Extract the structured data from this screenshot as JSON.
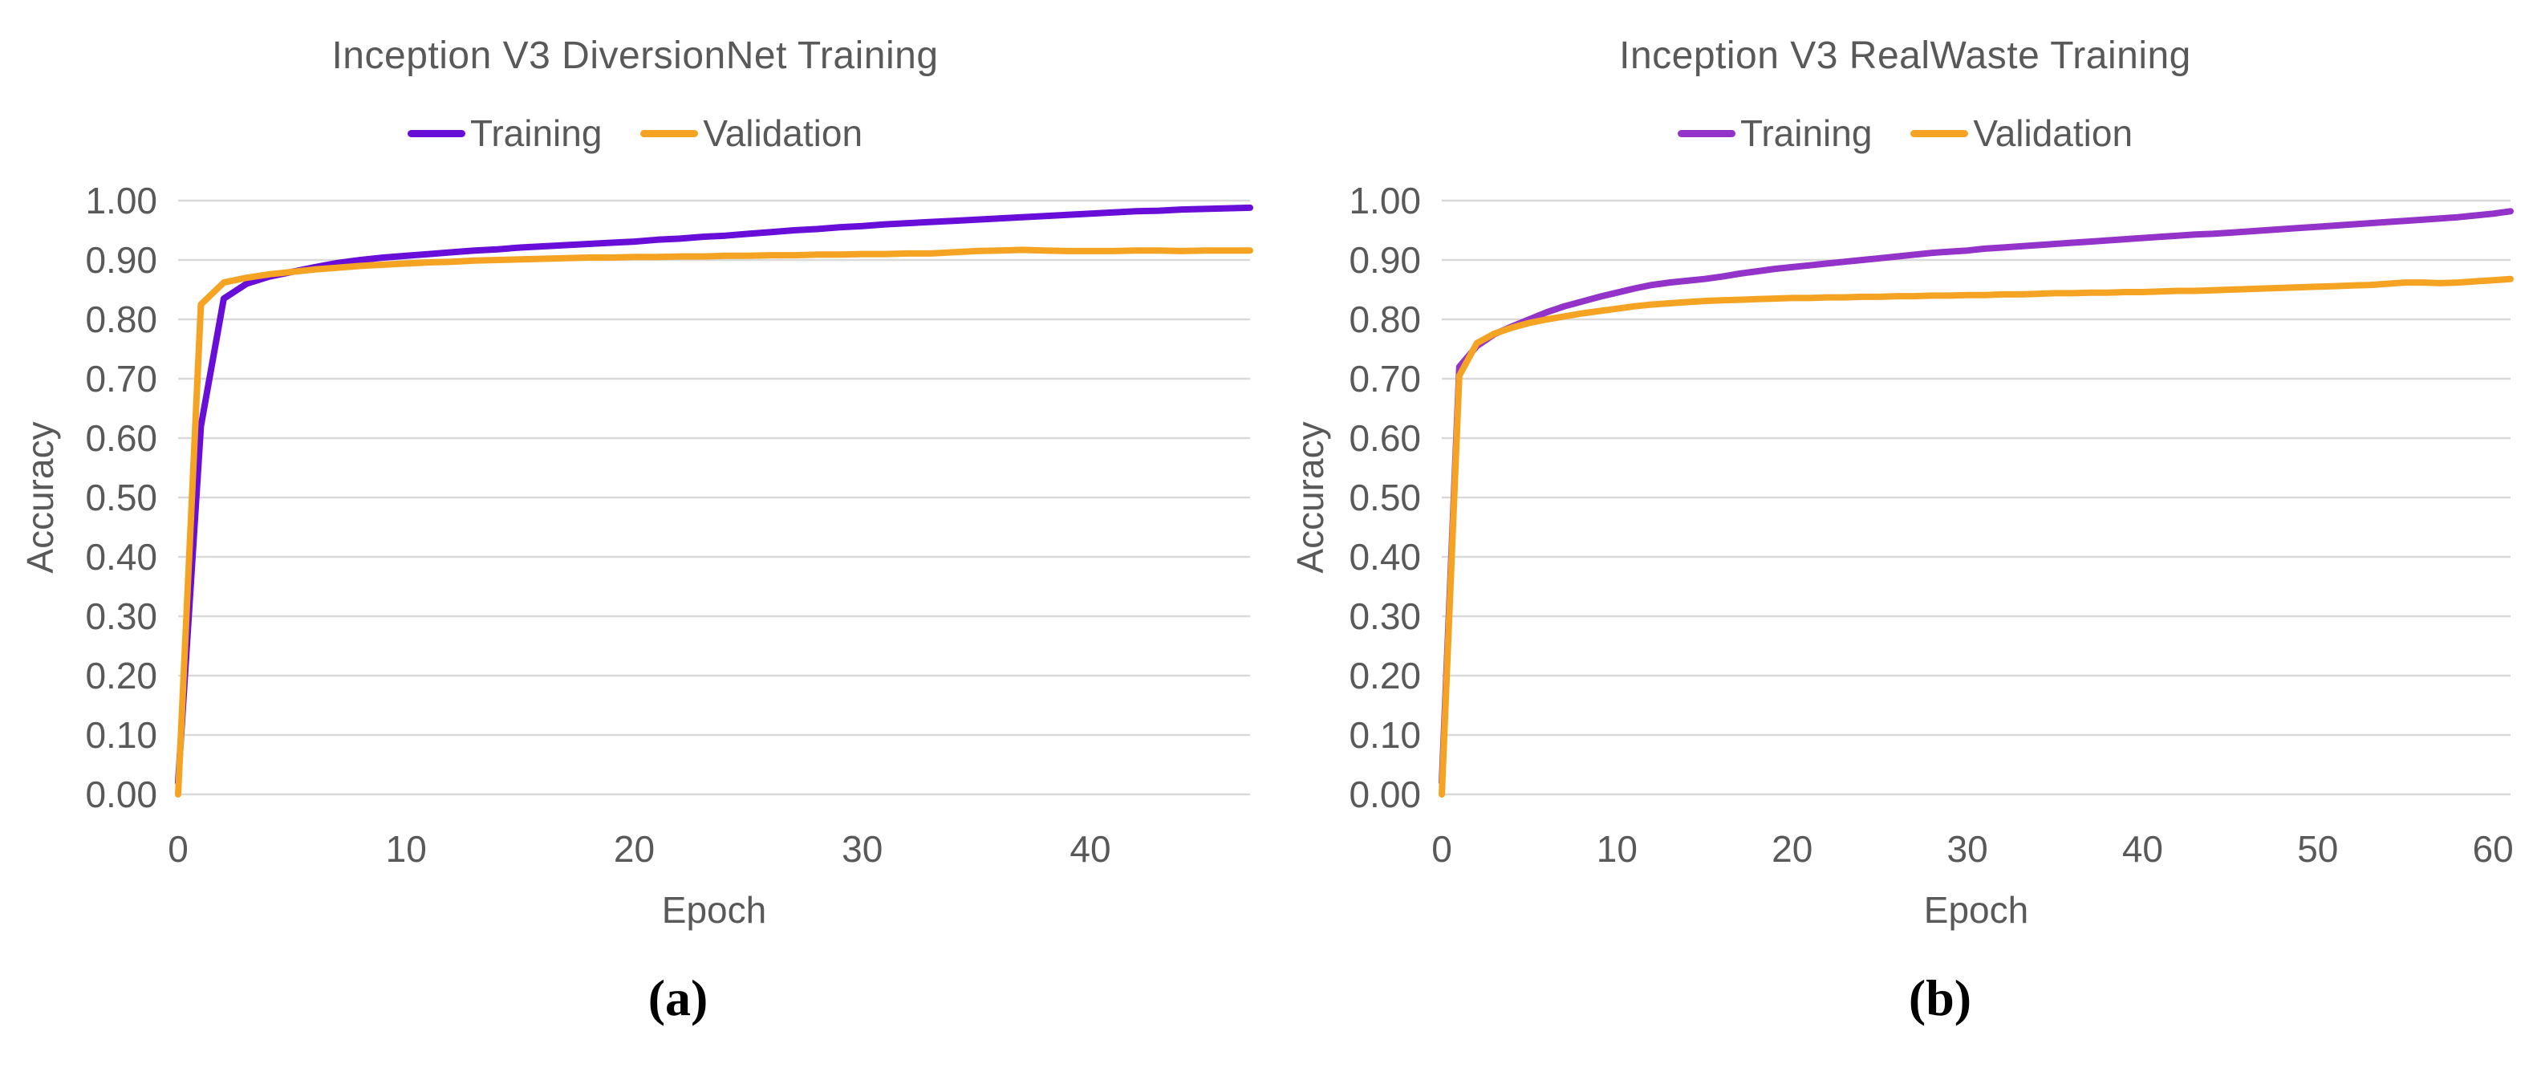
{
  "page": {
    "background": "#FFFFFF"
  },
  "colors": {
    "gridline": "#D9D9D9",
    "text": "#595959",
    "caption_text": "#000000"
  },
  "chart_data": [
    {
      "type": "line",
      "title": "Inception V3 DiversionNet Training",
      "caption": "(a)",
      "xlabel": "Epoch",
      "ylabel": "Accuracy",
      "legend_position": "top",
      "grid": "horizontal",
      "xlim": [
        0,
        47
      ],
      "ylim": [
        0,
        1
      ],
      "x_ticks": [
        0,
        10,
        20,
        30,
        40
      ],
      "y_ticks": [
        "1.00",
        "0.90",
        "0.80",
        "0.70",
        "0.60",
        "0.50",
        "0.40",
        "0.30",
        "0.20",
        "0.10",
        "0.00"
      ],
      "colors": {
        "gridline": "#D9D9D9",
        "text": "#595959"
      },
      "x_unit": "epoch (index = epoch number)",
      "series": [
        {
          "name": "Training",
          "color": "#690DD8",
          "values": [
            0.02,
            0.62,
            0.835,
            0.86,
            0.872,
            0.88,
            0.888,
            0.895,
            0.9,
            0.904,
            0.907,
            0.91,
            0.913,
            0.916,
            0.918,
            0.921,
            0.923,
            0.925,
            0.927,
            0.929,
            0.931,
            0.934,
            0.936,
            0.939,
            0.941,
            0.944,
            0.947,
            0.95,
            0.952,
            0.955,
            0.957,
            0.96,
            0.962,
            0.964,
            0.966,
            0.968,
            0.97,
            0.972,
            0.974,
            0.976,
            0.978,
            0.98,
            0.982,
            0.983,
            0.985,
            0.986,
            0.987,
            0.988
          ]
        },
        {
          "name": "Validation",
          "color": "#F5A323",
          "values": [
            0.0,
            0.825,
            0.862,
            0.87,
            0.876,
            0.88,
            0.884,
            0.887,
            0.89,
            0.892,
            0.894,
            0.896,
            0.897,
            0.899,
            0.9,
            0.901,
            0.902,
            0.903,
            0.904,
            0.904,
            0.905,
            0.905,
            0.906,
            0.906,
            0.907,
            0.907,
            0.908,
            0.908,
            0.909,
            0.909,
            0.91,
            0.91,
            0.911,
            0.911,
            0.913,
            0.915,
            0.916,
            0.917,
            0.916,
            0.915,
            0.915,
            0.915,
            0.916,
            0.916,
            0.915,
            0.916,
            0.916,
            0.916
          ]
        }
      ]
    },
    {
      "type": "line",
      "title": "Inception V3 RealWaste Training",
      "caption": "(b)",
      "xlabel": "Epoch",
      "ylabel": "Accuracy",
      "legend_position": "top",
      "grid": "horizontal",
      "xlim": [
        0,
        61
      ],
      "ylim": [
        0,
        1
      ],
      "x_ticks": [
        0,
        10,
        20,
        30,
        40,
        50,
        60
      ],
      "y_ticks": [
        "1.00",
        "0.90",
        "0.80",
        "0.70",
        "0.60",
        "0.50",
        "0.40",
        "0.30",
        "0.20",
        "0.10",
        "0.00"
      ],
      "colors": {
        "gridline": "#D9D9D9",
        "text": "#595959"
      },
      "x_unit": "epoch (index = epoch number)",
      "series": [
        {
          "name": "Training",
          "color": "#9333C9",
          "values": [
            0.02,
            0.72,
            0.755,
            0.775,
            0.788,
            0.8,
            0.812,
            0.822,
            0.83,
            0.838,
            0.845,
            0.852,
            0.858,
            0.862,
            0.865,
            0.868,
            0.872,
            0.877,
            0.881,
            0.885,
            0.888,
            0.891,
            0.894,
            0.897,
            0.9,
            0.903,
            0.906,
            0.909,
            0.912,
            0.914,
            0.916,
            0.919,
            0.921,
            0.923,
            0.925,
            0.927,
            0.929,
            0.931,
            0.933,
            0.935,
            0.937,
            0.939,
            0.941,
            0.943,
            0.944,
            0.946,
            0.948,
            0.95,
            0.952,
            0.954,
            0.956,
            0.958,
            0.96,
            0.962,
            0.964,
            0.966,
            0.968,
            0.97,
            0.972,
            0.975,
            0.978,
            0.982
          ]
        },
        {
          "name": "Validation",
          "color": "#F5A323",
          "values": [
            0.0,
            0.705,
            0.76,
            0.776,
            0.786,
            0.794,
            0.8,
            0.805,
            0.81,
            0.814,
            0.818,
            0.822,
            0.825,
            0.827,
            0.829,
            0.831,
            0.832,
            0.833,
            0.834,
            0.835,
            0.836,
            0.836,
            0.837,
            0.837,
            0.838,
            0.838,
            0.839,
            0.839,
            0.84,
            0.84,
            0.841,
            0.841,
            0.842,
            0.842,
            0.843,
            0.844,
            0.844,
            0.845,
            0.845,
            0.846,
            0.846,
            0.847,
            0.848,
            0.848,
            0.849,
            0.85,
            0.851,
            0.852,
            0.853,
            0.854,
            0.855,
            0.856,
            0.857,
            0.858,
            0.86,
            0.862,
            0.862,
            0.861,
            0.862,
            0.864,
            0.866,
            0.868
          ]
        }
      ]
    }
  ]
}
